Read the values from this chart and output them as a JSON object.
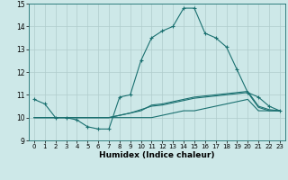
{
  "xlabel": "Humidex (Indice chaleur)",
  "xlim": [
    -0.5,
    23.5
  ],
  "ylim": [
    9,
    15
  ],
  "yticks": [
    9,
    10,
    11,
    12,
    13,
    14,
    15
  ],
  "xticks": [
    0,
    1,
    2,
    3,
    4,
    5,
    6,
    7,
    8,
    9,
    10,
    11,
    12,
    13,
    14,
    15,
    16,
    17,
    18,
    19,
    20,
    21,
    22,
    23
  ],
  "bg_color": "#cde8e8",
  "grid_color": "#b0cccc",
  "line_color": "#1a7070",
  "lines": [
    {
      "x": [
        0,
        1,
        2,
        3,
        4,
        5,
        6,
        7,
        8,
        9,
        10,
        11,
        12,
        13,
        14,
        15,
        16,
        17,
        18,
        19,
        20,
        21,
        22,
        23
      ],
      "y": [
        10.8,
        10.6,
        10.0,
        10.0,
        9.9,
        9.6,
        9.5,
        9.5,
        10.9,
        11.0,
        12.5,
        13.5,
        13.8,
        14.0,
        14.8,
        14.8,
        13.7,
        13.5,
        13.1,
        12.1,
        11.1,
        10.9,
        10.5,
        10.3
      ],
      "marker": true
    },
    {
      "x": [
        0,
        1,
        2,
        3,
        4,
        5,
        6,
        7,
        8,
        9,
        10,
        11,
        12,
        13,
        14,
        15,
        16,
        17,
        18,
        19,
        20,
        21,
        22,
        23
      ],
      "y": [
        10.0,
        10.0,
        10.0,
        10.0,
        10.0,
        10.0,
        10.0,
        10.0,
        10.0,
        10.0,
        10.0,
        10.0,
        10.1,
        10.2,
        10.3,
        10.3,
        10.4,
        10.5,
        10.6,
        10.7,
        10.8,
        10.3,
        10.3,
        10.3
      ],
      "marker": false
    },
    {
      "x": [
        0,
        1,
        2,
        3,
        4,
        5,
        6,
        7,
        8,
        9,
        10,
        11,
        12,
        13,
        14,
        15,
        16,
        17,
        18,
        19,
        20,
        21,
        22,
        23
      ],
      "y": [
        10.0,
        10.0,
        10.0,
        10.0,
        10.0,
        10.0,
        10.0,
        10.0,
        10.1,
        10.2,
        10.35,
        10.5,
        10.55,
        10.65,
        10.75,
        10.85,
        10.9,
        10.95,
        11.0,
        11.05,
        11.1,
        10.45,
        10.3,
        10.3
      ],
      "marker": false
    },
    {
      "x": [
        0,
        1,
        2,
        3,
        4,
        5,
        6,
        7,
        8,
        9,
        10,
        11,
        12,
        13,
        14,
        15,
        16,
        17,
        18,
        19,
        20,
        21,
        22,
        23
      ],
      "y": [
        10.0,
        10.0,
        10.0,
        10.0,
        10.0,
        10.0,
        10.0,
        10.0,
        10.1,
        10.2,
        10.3,
        10.55,
        10.6,
        10.7,
        10.8,
        10.9,
        10.95,
        11.0,
        11.05,
        11.1,
        11.15,
        10.5,
        10.35,
        10.3
      ],
      "marker": false
    }
  ]
}
